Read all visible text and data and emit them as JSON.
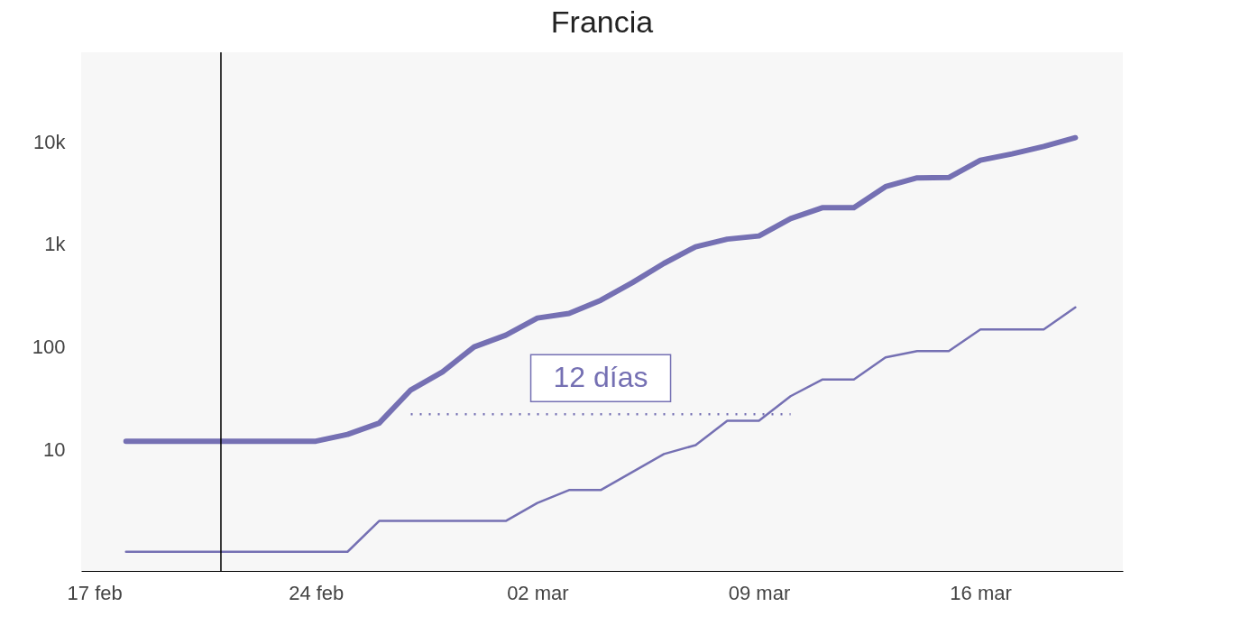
{
  "chart_data": {
    "type": "line",
    "title": "Francia",
    "x": [
      "--02-18",
      "--02-19",
      "--02-20",
      "--02-21",
      "--02-22",
      "--02-23",
      "--02-24",
      "--02-25",
      "--02-26",
      "--02-27",
      "--02-28",
      "--02-29",
      "--03-01",
      "--03-02",
      "--03-03",
      "--03-04",
      "--03-05",
      "--03-06",
      "--03-07",
      "--03-08",
      "--03-09",
      "--03-10",
      "--03-11",
      "--03-12",
      "--03-13",
      "--03-14",
      "--03-15",
      "--03-16",
      "--03-17",
      "--03-18",
      "--03-19"
    ],
    "series": [
      {
        "color": "#7570b3",
        "values": [
          12,
          12,
          12,
          12,
          12,
          12,
          12,
          14,
          18,
          38,
          57,
          100,
          130,
          191,
          212,
          285,
          423,
          653,
          949,
          1126,
          1209,
          1784,
          2281,
          2281,
          3661,
          4469,
          4499,
          6633,
          7652,
          9043,
          11000
        ]
      },
      {
        "color": "#7570b3",
        "values": [
          1,
          1,
          1,
          1,
          1,
          1,
          1,
          1,
          2,
          2,
          2,
          2,
          2,
          3,
          4,
          4,
          6,
          9,
          11,
          19,
          19,
          33,
          48,
          48,
          79,
          91,
          91,
          148,
          148,
          148,
          243
        ]
      },
      {
        "type": "line",
        "line_style": "dotted",
        "color": "#7570b3",
        "x": [
          "--02-27",
          "--03-10"
        ],
        "values": [
          22,
          22
        ]
      }
    ],
    "log": "y",
    "grid": false,
    "xlim": [
      "--02-16T14:00",
      "--03-20T12:00"
    ],
    "xticks": [
      {
        "value": "--02-17",
        "label": "17 feb"
      },
      {
        "value": "--02-24",
        "label": "24 feb"
      },
      {
        "value": "--03-02",
        "label": "02 mar"
      },
      {
        "value": "--03-09",
        "label": "09 mar"
      },
      {
        "value": "--03-16",
        "label": "16 mar"
      }
    ],
    "ylim": [
      0.65,
      75000
    ],
    "yticks": [
      10,
      100,
      {
        "value": 1000,
        "label": "1k"
      },
      {
        "value": 10000,
        "label": "10k"
      }
    ],
    "ref_lines": [
      {
        "axis": "x",
        "value": "--02-21",
        "color": "#000000"
      }
    ],
    "annotations": [
      "12 días"
    ]
  }
}
